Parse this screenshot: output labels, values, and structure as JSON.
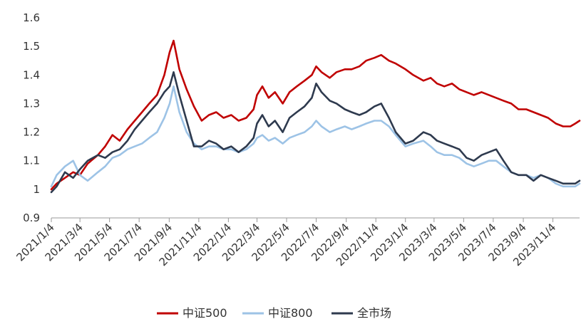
{
  "chart_data": {
    "type": "line",
    "title": "",
    "xlabel": "",
    "ylabel": "",
    "ylim": [
      0.9,
      1.6
    ],
    "yticks": [
      0.9,
      1,
      1.1,
      1.2,
      1.3,
      1.4,
      1.5,
      1.6
    ],
    "x_tick_labels": [
      "2021/1/4",
      "2021/3/4",
      "2021/5/4",
      "2021/7/4",
      "2021/9/4",
      "2021/11/4",
      "2022/1/4",
      "2022/3/4",
      "2022/5/4",
      "2022/7/4",
      "2022/9/4",
      "2022/11/4",
      "2023/1/4",
      "2023/3/4",
      "2023/5/4",
      "2023/7/4",
      "2023/9/4",
      "2023/11/4"
    ],
    "x_range": [
      "2021/1/4",
      "2023/12/29"
    ],
    "grid": false,
    "legend_position": "bottom-center",
    "series": [
      {
        "name": "中证500",
        "color": "#c00000",
        "points": [
          [
            "2021/1/4",
            1.0
          ],
          [
            "2021/1/15",
            1.02
          ],
          [
            "2021/2/1",
            1.04
          ],
          [
            "2021/2/18",
            1.06
          ],
          [
            "2021/3/4",
            1.05
          ],
          [
            "2021/3/20",
            1.09
          ],
          [
            "2021/4/10",
            1.12
          ],
          [
            "2021/4/25",
            1.15
          ],
          [
            "2021/5/10",
            1.19
          ],
          [
            "2021/5/25",
            1.17
          ],
          [
            "2021/6/10",
            1.21
          ],
          [
            "2021/6/25",
            1.24
          ],
          [
            "2021/7/10",
            1.27
          ],
          [
            "2021/7/25",
            1.3
          ],
          [
            "2021/8/10",
            1.33
          ],
          [
            "2021/8/25",
            1.4
          ],
          [
            "2021/9/5",
            1.48
          ],
          [
            "2021/9/13",
            1.52
          ],
          [
            "2021/9/25",
            1.42
          ],
          [
            "2021/10/10",
            1.35
          ],
          [
            "2021/10/25",
            1.29
          ],
          [
            "2021/11/10",
            1.24
          ],
          [
            "2021/11/25",
            1.26
          ],
          [
            "2021/12/10",
            1.27
          ],
          [
            "2021/12/25",
            1.25
          ],
          [
            "2022/1/10",
            1.26
          ],
          [
            "2022/1/25",
            1.24
          ],
          [
            "2022/2/10",
            1.25
          ],
          [
            "2022/2/25",
            1.28
          ],
          [
            "2022/3/4",
            1.33
          ],
          [
            "2022/3/15",
            1.36
          ],
          [
            "2022/3/28",
            1.32
          ],
          [
            "2022/4/10",
            1.34
          ],
          [
            "2022/4/26",
            1.3
          ],
          [
            "2022/5/10",
            1.34
          ],
          [
            "2022/5/25",
            1.36
          ],
          [
            "2022/6/10",
            1.38
          ],
          [
            "2022/6/25",
            1.4
          ],
          [
            "2022/7/4",
            1.43
          ],
          [
            "2022/7/15",
            1.41
          ],
          [
            "2022/8/1",
            1.39
          ],
          [
            "2022/8/15",
            1.41
          ],
          [
            "2022/9/1",
            1.42
          ],
          [
            "2022/9/15",
            1.42
          ],
          [
            "2022/10/1",
            1.43
          ],
          [
            "2022/10/15",
            1.45
          ],
          [
            "2022/11/1",
            1.46
          ],
          [
            "2022/11/15",
            1.47
          ],
          [
            "2022/12/1",
            1.45
          ],
          [
            "2022/12/15",
            1.44
          ],
          [
            "2023/1/4",
            1.42
          ],
          [
            "2023/1/20",
            1.4
          ],
          [
            "2023/2/10",
            1.38
          ],
          [
            "2023/2/25",
            1.39
          ],
          [
            "2023/3/10",
            1.37
          ],
          [
            "2023/3/25",
            1.36
          ],
          [
            "2023/4/10",
            1.37
          ],
          [
            "2023/4/25",
            1.35
          ],
          [
            "2023/5/10",
            1.34
          ],
          [
            "2023/5/25",
            1.33
          ],
          [
            "2023/6/10",
            1.34
          ],
          [
            "2023/6/25",
            1.33
          ],
          [
            "2023/7/10",
            1.32
          ],
          [
            "2023/7/25",
            1.31
          ],
          [
            "2023/8/10",
            1.3
          ],
          [
            "2023/8/25",
            1.28
          ],
          [
            "2023/9/10",
            1.28
          ],
          [
            "2023/9/25",
            1.27
          ],
          [
            "2023/10/10",
            1.26
          ],
          [
            "2023/10/25",
            1.25
          ],
          [
            "2023/11/10",
            1.23
          ],
          [
            "2023/11/25",
            1.22
          ],
          [
            "2023/12/10",
            1.22
          ],
          [
            "2023/12/20",
            1.23
          ],
          [
            "2023/12/29",
            1.24
          ]
        ]
      },
      {
        "name": "中证800",
        "color": "#9dc3e6",
        "points": [
          [
            "2021/1/4",
            1.01
          ],
          [
            "2021/1/15",
            1.05
          ],
          [
            "2021/2/1",
            1.08
          ],
          [
            "2021/2/18",
            1.1
          ],
          [
            "2021/3/4",
            1.05
          ],
          [
            "2021/3/20",
            1.03
          ],
          [
            "2021/4/10",
            1.06
          ],
          [
            "2021/4/25",
            1.08
          ],
          [
            "2021/5/10",
            1.11
          ],
          [
            "2021/5/25",
            1.12
          ],
          [
            "2021/6/10",
            1.14
          ],
          [
            "2021/6/25",
            1.15
          ],
          [
            "2021/7/10",
            1.16
          ],
          [
            "2021/7/25",
            1.18
          ],
          [
            "2021/8/10",
            1.2
          ],
          [
            "2021/8/25",
            1.25
          ],
          [
            "2021/9/5",
            1.3
          ],
          [
            "2021/9/13",
            1.36
          ],
          [
            "2021/9/25",
            1.27
          ],
          [
            "2021/10/10",
            1.2
          ],
          [
            "2021/10/25",
            1.16
          ],
          [
            "2021/11/10",
            1.14
          ],
          [
            "2021/11/25",
            1.15
          ],
          [
            "2021/12/10",
            1.15
          ],
          [
            "2021/12/25",
            1.14
          ],
          [
            "2022/1/10",
            1.14
          ],
          [
            "2022/1/25",
            1.13
          ],
          [
            "2022/2/10",
            1.14
          ],
          [
            "2022/2/25",
            1.16
          ],
          [
            "2022/3/4",
            1.18
          ],
          [
            "2022/3/15",
            1.19
          ],
          [
            "2022/3/28",
            1.17
          ],
          [
            "2022/4/10",
            1.18
          ],
          [
            "2022/4/26",
            1.16
          ],
          [
            "2022/5/10",
            1.18
          ],
          [
            "2022/5/25",
            1.19
          ],
          [
            "2022/6/10",
            1.2
          ],
          [
            "2022/6/25",
            1.22
          ],
          [
            "2022/7/4",
            1.24
          ],
          [
            "2022/7/15",
            1.22
          ],
          [
            "2022/8/1",
            1.2
          ],
          [
            "2022/8/15",
            1.21
          ],
          [
            "2022/9/1",
            1.22
          ],
          [
            "2022/9/15",
            1.21
          ],
          [
            "2022/10/1",
            1.22
          ],
          [
            "2022/10/15",
            1.23
          ],
          [
            "2022/11/1",
            1.24
          ],
          [
            "2022/11/15",
            1.24
          ],
          [
            "2022/12/1",
            1.22
          ],
          [
            "2022/12/15",
            1.19
          ],
          [
            "2023/1/4",
            1.15
          ],
          [
            "2023/1/20",
            1.16
          ],
          [
            "2023/2/10",
            1.17
          ],
          [
            "2023/2/25",
            1.15
          ],
          [
            "2023/3/10",
            1.13
          ],
          [
            "2023/3/25",
            1.12
          ],
          [
            "2023/4/10",
            1.12
          ],
          [
            "2023/4/25",
            1.11
          ],
          [
            "2023/5/10",
            1.09
          ],
          [
            "2023/5/25",
            1.08
          ],
          [
            "2023/6/10",
            1.09
          ],
          [
            "2023/6/25",
            1.1
          ],
          [
            "2023/7/10",
            1.1
          ],
          [
            "2023/7/25",
            1.08
          ],
          [
            "2023/8/10",
            1.06
          ],
          [
            "2023/8/25",
            1.05
          ],
          [
            "2023/9/10",
            1.05
          ],
          [
            "2023/9/25",
            1.04
          ],
          [
            "2023/10/10",
            1.05
          ],
          [
            "2023/10/25",
            1.04
          ],
          [
            "2023/11/10",
            1.02
          ],
          [
            "2023/11/25",
            1.01
          ],
          [
            "2023/12/10",
            1.01
          ],
          [
            "2023/12/20",
            1.01
          ],
          [
            "2023/12/29",
            1.02
          ]
        ]
      },
      {
        "name": "全市场",
        "color": "#2e3a4e",
        "points": [
          [
            "2021/1/4",
            0.99
          ],
          [
            "2021/1/15",
            1.01
          ],
          [
            "2021/2/1",
            1.06
          ],
          [
            "2021/2/18",
            1.04
          ],
          [
            "2021/3/4",
            1.07
          ],
          [
            "2021/3/20",
            1.1
          ],
          [
            "2021/4/10",
            1.12
          ],
          [
            "2021/4/25",
            1.11
          ],
          [
            "2021/5/10",
            1.13
          ],
          [
            "2021/5/25",
            1.14
          ],
          [
            "2021/6/10",
            1.17
          ],
          [
            "2021/6/25",
            1.21
          ],
          [
            "2021/7/10",
            1.24
          ],
          [
            "2021/7/25",
            1.27
          ],
          [
            "2021/8/10",
            1.3
          ],
          [
            "2021/8/25",
            1.34
          ],
          [
            "2021/9/5",
            1.36
          ],
          [
            "2021/9/13",
            1.41
          ],
          [
            "2021/9/25",
            1.33
          ],
          [
            "2021/10/10",
            1.24
          ],
          [
            "2021/10/25",
            1.15
          ],
          [
            "2021/11/10",
            1.15
          ],
          [
            "2021/11/25",
            1.17
          ],
          [
            "2021/12/10",
            1.16
          ],
          [
            "2021/12/25",
            1.14
          ],
          [
            "2022/1/10",
            1.15
          ],
          [
            "2022/1/25",
            1.13
          ],
          [
            "2022/2/10",
            1.15
          ],
          [
            "2022/2/25",
            1.18
          ],
          [
            "2022/3/4",
            1.23
          ],
          [
            "2022/3/15",
            1.26
          ],
          [
            "2022/3/28",
            1.22
          ],
          [
            "2022/4/10",
            1.24
          ],
          [
            "2022/4/26",
            1.2
          ],
          [
            "2022/5/10",
            1.25
          ],
          [
            "2022/5/25",
            1.27
          ],
          [
            "2022/6/10",
            1.29
          ],
          [
            "2022/6/25",
            1.32
          ],
          [
            "2022/7/4",
            1.37
          ],
          [
            "2022/7/15",
            1.34
          ],
          [
            "2022/8/1",
            1.31
          ],
          [
            "2022/8/15",
            1.3
          ],
          [
            "2022/9/1",
            1.28
          ],
          [
            "2022/9/15",
            1.27
          ],
          [
            "2022/10/1",
            1.26
          ],
          [
            "2022/10/15",
            1.27
          ],
          [
            "2022/11/1",
            1.29
          ],
          [
            "2022/11/15",
            1.3
          ],
          [
            "2022/12/1",
            1.25
          ],
          [
            "2022/12/15",
            1.2
          ],
          [
            "2023/1/4",
            1.16
          ],
          [
            "2023/1/20",
            1.17
          ],
          [
            "2023/2/10",
            1.2
          ],
          [
            "2023/2/25",
            1.19
          ],
          [
            "2023/3/10",
            1.17
          ],
          [
            "2023/3/25",
            1.16
          ],
          [
            "2023/4/10",
            1.15
          ],
          [
            "2023/4/25",
            1.14
          ],
          [
            "2023/5/10",
            1.11
          ],
          [
            "2023/5/25",
            1.1
          ],
          [
            "2023/6/10",
            1.12
          ],
          [
            "2023/6/25",
            1.13
          ],
          [
            "2023/7/10",
            1.14
          ],
          [
            "2023/7/25",
            1.1
          ],
          [
            "2023/8/10",
            1.06
          ],
          [
            "2023/8/25",
            1.05
          ],
          [
            "2023/9/10",
            1.05
          ],
          [
            "2023/9/25",
            1.03
          ],
          [
            "2023/10/10",
            1.05
          ],
          [
            "2023/10/25",
            1.04
          ],
          [
            "2023/11/10",
            1.03
          ],
          [
            "2023/11/25",
            1.02
          ],
          [
            "2023/12/10",
            1.02
          ],
          [
            "2023/12/20",
            1.02
          ],
          [
            "2023/12/29",
            1.03
          ]
        ]
      }
    ]
  }
}
